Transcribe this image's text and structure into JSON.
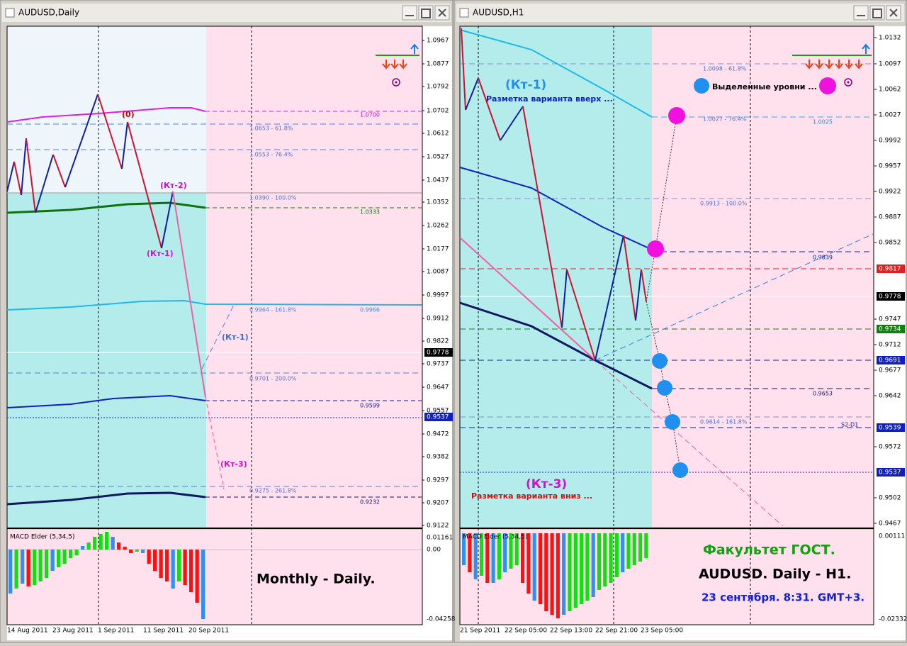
{
  "windows": [
    {
      "title": "AUDUSD,Daily",
      "price_scale": [
        "1.0967",
        "1.0877",
        "1.0792",
        "1.0702",
        "1.0612",
        "1.0527",
        "1.0437",
        "1.0352",
        "1.0262",
        "1.0177",
        "1.0087",
        "0.9997",
        "0.9912",
        "0.9822",
        "0.9737",
        "0.9647",
        "0.9557",
        "0.9472",
        "0.9382",
        "0.9297",
        "0.9207",
        "0.9122"
      ],
      "price_markers": [
        "0.9778",
        "0.9537"
      ],
      "level_labels": [
        "1.0700",
        "1.0653 - 61.8%",
        "1.0553 - 76.4%",
        "1.0390 - 100.0%",
        "1.0333",
        "0.9964 - 161.8%",
        "0.9966",
        "0.9701 - 200.0%",
        "0.9599",
        "0.9275 - 261.8%",
        "0.9232"
      ],
      "annotations": [
        "(0)",
        "(Кт-2)",
        "(Кт-1)",
        "(Кт-1)",
        "(Кт-3)"
      ],
      "macd": {
        "label": "MACD Elder (5,34,5)",
        "scale": [
          "0.01161",
          "0.00",
          "-0.04258"
        ]
      },
      "dates": [
        "14 Aug 2011",
        "23 Aug 2011",
        "1 Sep 2011",
        "11 Sep 2011",
        "20 Sep 2011"
      ],
      "caption": [
        "Monthly - Daily."
      ]
    },
    {
      "title": "AUDUSD,H1",
      "price_scale": [
        "1.0132",
        "1.0097",
        "1.0062",
        "1.0027",
        "0.9992",
        "0.9957",
        "0.9922",
        "0.9887",
        "0.9852",
        "0.9747",
        "0.9712",
        "0.9677",
        "0.9642",
        "0.9572",
        "0.9502",
        "0.9467"
      ],
      "price_markers": [
        "0.9817",
        "0.9778",
        "0.9734",
        "0.9691",
        "0.9539",
        "0.9537"
      ],
      "level_labels": [
        "1.0098 - 61.8%",
        "1.0027 - 76.4%",
        "1.0025",
        "0.9913 - 100.0%",
        "0.9839",
        "0.9653",
        "0.9614 - 161.8%",
        "S2-D1"
      ],
      "annotations": [
        "(Кт-1)",
        "Разметка варианта вверх ...",
        "Выделенные уровни ...",
        "(Кт-3)",
        "Разметка варианта вниз ..."
      ],
      "macd": {
        "label": "MACD Elder (5,34,5)",
        "scale": [
          "0.00111",
          "-0.02332"
        ]
      },
      "dates": [
        "21 Sep 2011",
        "22 Sep 05:00",
        "22 Sep 13:00",
        "22 Sep 21:00",
        "23 Sep 05:00"
      ],
      "caption": [
        "Факультет ГОСТ.",
        "AUDUSD. Daily - H1.",
        "23 сентября. 8:31. GMT+3."
      ]
    }
  ]
}
